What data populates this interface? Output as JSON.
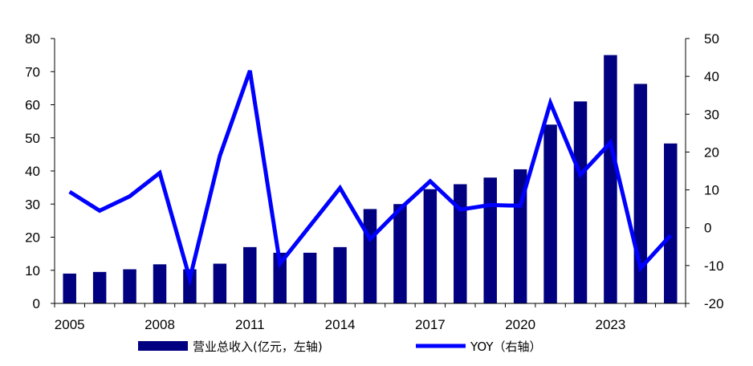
{
  "chart_data": {
    "type": "bar",
    "categories": [
      "2005",
      "2006",
      "2007",
      "2008",
      "2009",
      "2010",
      "2011",
      "2012",
      "2013",
      "2014",
      "2015",
      "2016",
      "2017",
      "2018",
      "2019",
      "2020",
      "2021",
      "2022",
      "2023",
      "2024",
      "2025"
    ],
    "x_tick_labels": [
      "2005",
      "2008",
      "2011",
      "2014",
      "2017",
      "2020",
      "2023"
    ],
    "series": [
      {
        "name": "营业总收入(亿元，左轴)",
        "type": "bar",
        "axis": "left",
        "color": "#000080",
        "values": [
          9.0,
          9.5,
          10.3,
          11.8,
          10.3,
          12.0,
          17.0,
          15.3,
          15.3,
          17.0,
          28.5,
          30.0,
          34.5,
          36.0,
          38.0,
          40.5,
          54.0,
          61.0,
          75.0,
          66.3,
          48.3
        ]
      },
      {
        "name": "YOY（右轴）",
        "type": "line",
        "axis": "right",
        "color": "#0000ff",
        "values": [
          9.5,
          4.5,
          8.3,
          14.5,
          -13.5,
          19.0,
          41.5,
          -9.5,
          0.5,
          10.5,
          -3.0,
          5.0,
          12.3,
          4.8,
          6.0,
          5.8,
          33.0,
          14.0,
          22.5,
          -10.7,
          -2.0
        ]
      }
    ],
    "y_left": {
      "min": 0,
      "max": 80,
      "ticks": [
        0,
        10,
        20,
        30,
        40,
        50,
        60,
        70,
        80
      ]
    },
    "y_right": {
      "min": -20,
      "max": 50,
      "ticks": [
        -20,
        -10,
        0,
        10,
        20,
        30,
        40,
        50
      ]
    },
    "grid": false,
    "legend_position": "bottom"
  }
}
